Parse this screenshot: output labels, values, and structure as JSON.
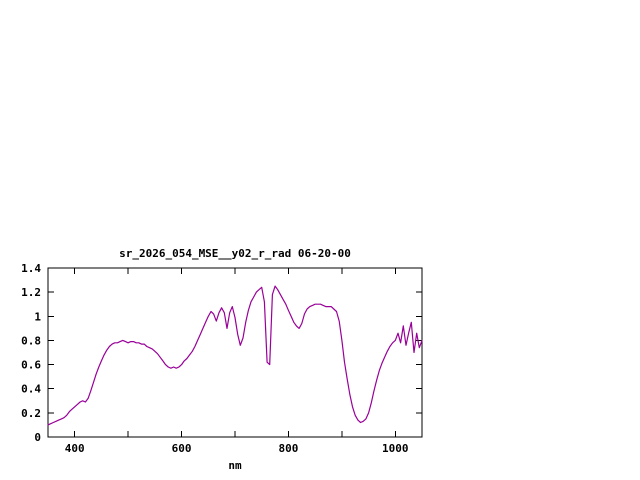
{
  "chart_data": {
    "type": "line",
    "title": "sr_2026_054_MSE__y02_r_rad 06-20-00",
    "xlabel": "nm",
    "ylabel": "",
    "xlim": [
      350,
      1050
    ],
    "ylim": [
      0,
      1.4
    ],
    "grid": false,
    "legend": "none",
    "line_color": "#990099",
    "axis_color": "#000000",
    "x_major_ticks": [
      400,
      500,
      600,
      700,
      800,
      900,
      1000
    ],
    "y_major_ticks": [
      0,
      0.2,
      0.4,
      0.6,
      0.8,
      1.0,
      1.2,
      1.4
    ],
    "x_tick_labels": [
      {
        "v": 400,
        "t": "400"
      },
      {
        "v": 600,
        "t": "600"
      },
      {
        "v": 800,
        "t": "800"
      },
      {
        "v": 1000,
        "t": "1000"
      }
    ],
    "y_tick_labels": [
      {
        "v": 0,
        "t": "0"
      },
      {
        "v": 0.2,
        "t": "0.2"
      },
      {
        "v": 0.4,
        "t": "0.4"
      },
      {
        "v": 0.6,
        "t": "0.6"
      },
      {
        "v": 0.8,
        "t": "0.8"
      },
      {
        "v": 1.0,
        "t": "1"
      },
      {
        "v": 1.2,
        "t": "1.2"
      },
      {
        "v": 1.4,
        "t": "1.4"
      }
    ],
    "series": [
      {
        "name": "sr_2026_054_MSE__y02_r_rad",
        "x": [
          350,
          355,
          360,
          365,
          370,
          375,
          380,
          385,
          390,
          395,
          400,
          405,
          410,
          415,
          420,
          425,
          430,
          435,
          440,
          445,
          450,
          455,
          460,
          465,
          470,
          475,
          480,
          485,
          490,
          495,
          500,
          505,
          510,
          515,
          520,
          525,
          530,
          535,
          540,
          545,
          550,
          555,
          560,
          565,
          570,
          575,
          580,
          585,
          590,
          595,
          600,
          605,
          610,
          615,
          620,
          625,
          630,
          635,
          640,
          645,
          650,
          655,
          660,
          665,
          670,
          675,
          680,
          685,
          690,
          695,
          700,
          705,
          710,
          715,
          720,
          725,
          730,
          735,
          740,
          745,
          750,
          755,
          760,
          765,
          770,
          775,
          780,
          785,
          790,
          795,
          800,
          805,
          810,
          815,
          820,
          825,
          830,
          835,
          840,
          845,
          850,
          855,
          860,
          865,
          870,
          875,
          880,
          885,
          890,
          895,
          900,
          905,
          910,
          915,
          920,
          925,
          930,
          935,
          940,
          945,
          950,
          955,
          960,
          965,
          970,
          975,
          980,
          985,
          990,
          995,
          1000,
          1005,
          1010,
          1015,
          1020,
          1025,
          1030,
          1035,
          1040,
          1045,
          1050
        ],
        "y": [
          0.1,
          0.11,
          0.12,
          0.13,
          0.14,
          0.15,
          0.16,
          0.18,
          0.21,
          0.23,
          0.25,
          0.27,
          0.29,
          0.3,
          0.29,
          0.32,
          0.38,
          0.45,
          0.52,
          0.58,
          0.63,
          0.68,
          0.72,
          0.75,
          0.77,
          0.78,
          0.78,
          0.79,
          0.8,
          0.79,
          0.78,
          0.79,
          0.79,
          0.78,
          0.78,
          0.77,
          0.77,
          0.75,
          0.74,
          0.73,
          0.71,
          0.69,
          0.66,
          0.63,
          0.6,
          0.58,
          0.57,
          0.58,
          0.57,
          0.58,
          0.6,
          0.63,
          0.65,
          0.68,
          0.71,
          0.75,
          0.8,
          0.85,
          0.9,
          0.95,
          1.0,
          1.04,
          1.02,
          0.96,
          1.03,
          1.07,
          1.03,
          0.9,
          1.03,
          1.08,
          0.99,
          0.85,
          0.76,
          0.82,
          0.95,
          1.05,
          1.12,
          1.16,
          1.2,
          1.22,
          1.24,
          1.12,
          0.62,
          0.6,
          1.18,
          1.25,
          1.22,
          1.18,
          1.14,
          1.1,
          1.05,
          1.0,
          0.95,
          0.92,
          0.9,
          0.94,
          1.02,
          1.06,
          1.08,
          1.09,
          1.1,
          1.1,
          1.1,
          1.09,
          1.08,
          1.08,
          1.08,
          1.06,
          1.04,
          0.96,
          0.8,
          0.62,
          0.48,
          0.35,
          0.25,
          0.18,
          0.14,
          0.12,
          0.13,
          0.15,
          0.2,
          0.28,
          0.38,
          0.47,
          0.55,
          0.61,
          0.66,
          0.71,
          0.75,
          0.78,
          0.8,
          0.86,
          0.78,
          0.92,
          0.76,
          0.86,
          0.95,
          0.7,
          0.86,
          0.74,
          0.8
        ]
      }
    ]
  }
}
